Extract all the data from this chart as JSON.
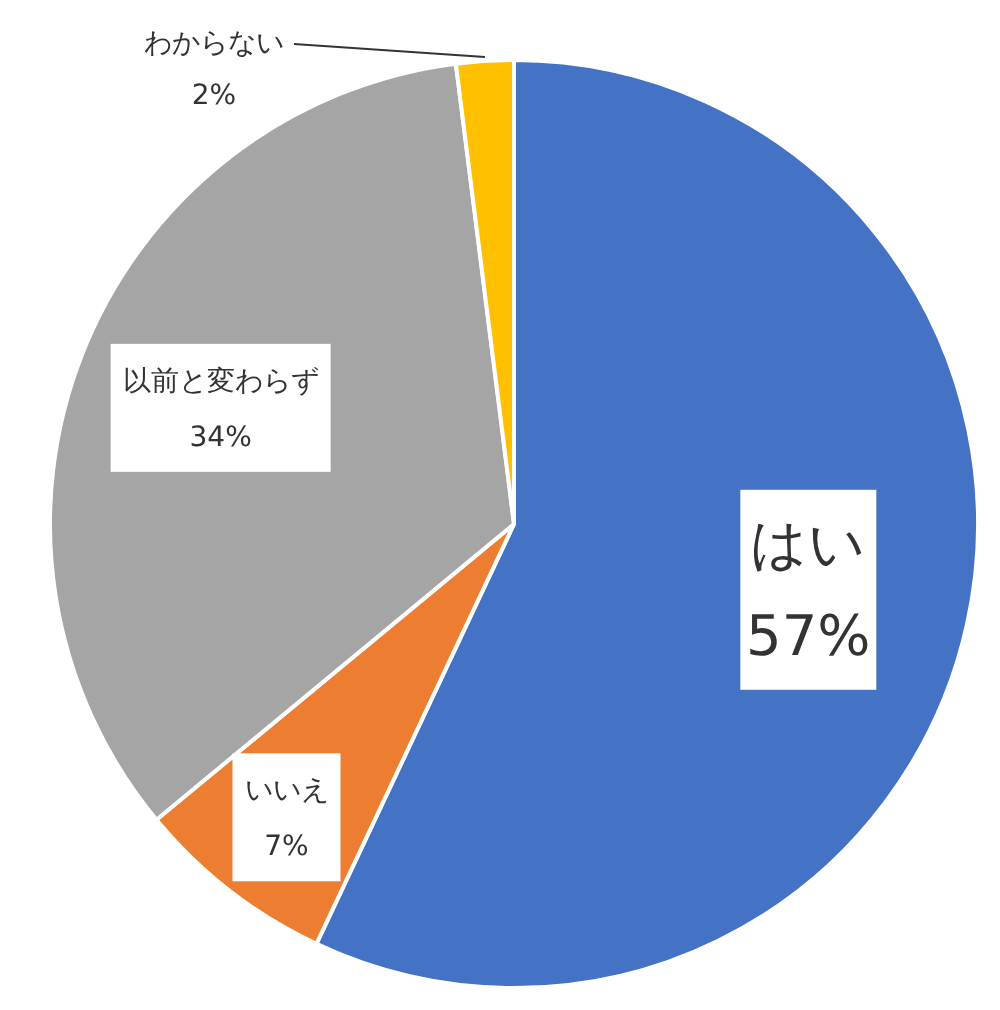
{
  "chart_data": {
    "type": "pie",
    "categories": [
      "はい",
      "いいえ",
      "以前と変わらず",
      "わからない"
    ],
    "values": [
      57,
      7,
      34,
      2
    ],
    "colors": [
      "#4472c4",
      "#ed7d31",
      "#a5a5a5",
      "#ffc000"
    ],
    "value_labels": [
      "57%",
      "7%",
      "34%",
      "2%"
    ]
  }
}
